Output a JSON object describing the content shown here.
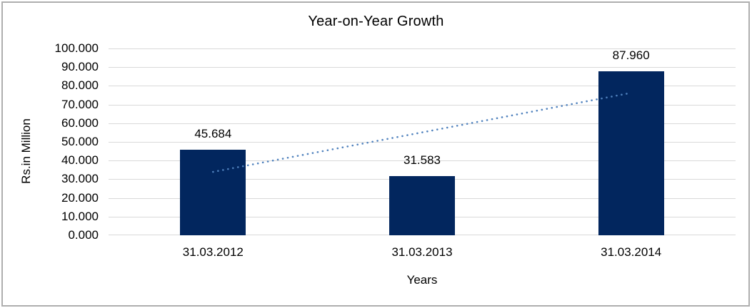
{
  "chart_data": {
    "type": "bar",
    "title": "Year-on-Year Growth",
    "xlabel": "Years",
    "ylabel": "Rs.in Million",
    "categories": [
      "31.03.2012",
      "31.03.2013",
      "31.03.2014"
    ],
    "values": [
      45.684,
      31.583,
      87.96
    ],
    "data_labels": [
      "45.684",
      "31.583",
      "87.960"
    ],
    "ylim": [
      0,
      100
    ],
    "ytick_step": 10,
    "ytick_labels": [
      "0.000",
      "10.000",
      "20.000",
      "30.000",
      "40.000",
      "50.000",
      "60.000",
      "70.000",
      "80.000",
      "90.000",
      "100.000"
    ],
    "grid": true,
    "legend": false,
    "bar_color": "#02265e",
    "gridline_color": "#d9d9d9",
    "frame_color": "#aeaeae",
    "trendline": {
      "type": "linear",
      "style": "dotted",
      "color": "#4f81bd"
    }
  }
}
